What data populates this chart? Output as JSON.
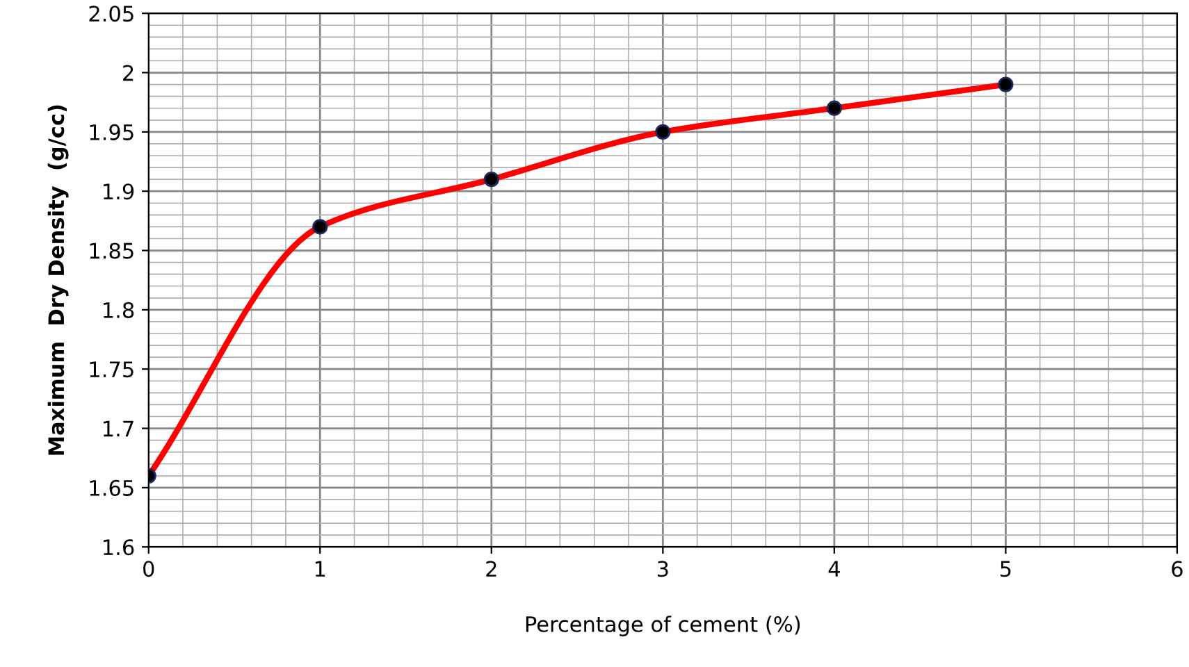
{
  "chart_data": {
    "type": "line",
    "xlabel": "Percentage of cement (%)",
    "ylabel": "Maximum  Dry Density  (g/cc)",
    "x": [
      0,
      1,
      2,
      3,
      4,
      5
    ],
    "series": [
      {
        "color": "#ff0000",
        "values": [
          1.66,
          1.87,
          1.91,
          1.95,
          1.97,
          1.99
        ]
      }
    ],
    "xlim": [
      0,
      6
    ],
    "xticks": [
      0,
      1,
      2,
      3,
      4,
      5,
      6
    ],
    "ylim": [
      1.6,
      2.05
    ],
    "yticks": [
      1.6,
      1.65,
      1.7,
      1.75,
      1.8,
      1.85,
      1.9,
      1.95,
      2,
      2.05
    ],
    "grid": true,
    "marker": "circle",
    "line_style": "solid",
    "legend": false
  }
}
